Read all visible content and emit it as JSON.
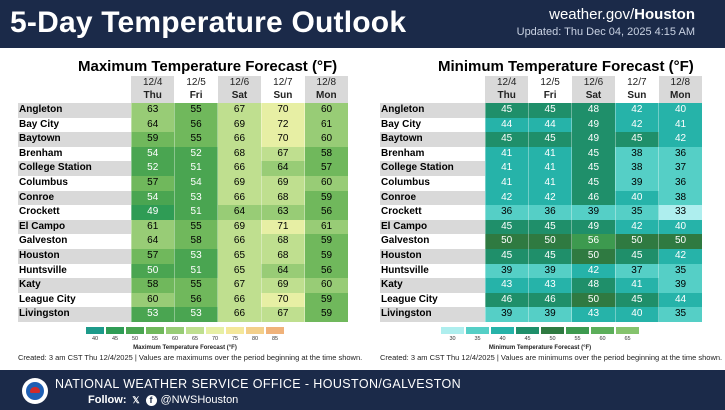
{
  "header": {
    "title": "5-Day Temperature Outlook",
    "site_prefix": "weather.gov/",
    "site_office": "Houston",
    "updated": "Updated: Thu Dec 04, 2025 4:15 AM"
  },
  "cities": [
    "Angleton",
    "Bay City",
    "Baytown",
    "Brenham",
    "College Station",
    "Columbus",
    "Conroe",
    "Crockett",
    "El Campo",
    "Galveston",
    "Houston",
    "Huntsville",
    "Katy",
    "League City",
    "Livingston"
  ],
  "dates": [
    "12/4",
    "12/5",
    "12/6",
    "12/7",
    "12/8"
  ],
  "days": [
    "Thu",
    "Fri",
    "Sat",
    "Sun",
    "Mon"
  ],
  "max_panel": {
    "title": "Maximum Temperature Forecast (°F)",
    "values": [
      [
        63,
        55,
        67,
        70,
        60
      ],
      [
        64,
        56,
        69,
        72,
        61
      ],
      [
        59,
        55,
        66,
        70,
        60
      ],
      [
        54,
        52,
        68,
        67,
        58
      ],
      [
        52,
        51,
        66,
        64,
        57
      ],
      [
        57,
        54,
        69,
        69,
        60
      ],
      [
        54,
        53,
        66,
        68,
        59
      ],
      [
        49,
        51,
        64,
        63,
        56
      ],
      [
        61,
        55,
        69,
        71,
        61
      ],
      [
        64,
        58,
        66,
        68,
        59
      ],
      [
        57,
        53,
        65,
        68,
        59
      ],
      [
        50,
        51,
        65,
        64,
        56
      ],
      [
        58,
        55,
        67,
        69,
        60
      ],
      [
        60,
        56,
        66,
        70,
        59
      ],
      [
        53,
        53,
        66,
        67,
        59
      ]
    ],
    "legend_ticks": [
      "40",
      "45",
      "50",
      "55",
      "60",
      "65",
      "70",
      "75",
      "80",
      "85"
    ],
    "legend_caption": "Maximum Temperature Forecast (°F)",
    "footnote": "Created: 3 am CST Thu 12/4/2025  |  Values are maximums over the period beginning at the time shown."
  },
  "min_panel": {
    "title": "Minimum Temperature Forecast (°F)",
    "values": [
      [
        45,
        45,
        48,
        42,
        40
      ],
      [
        44,
        44,
        49,
        42,
        41
      ],
      [
        45,
        45,
        49,
        45,
        42
      ],
      [
        41,
        41,
        45,
        38,
        36
      ],
      [
        41,
        41,
        45,
        38,
        37
      ],
      [
        41,
        41,
        45,
        39,
        36
      ],
      [
        42,
        42,
        46,
        40,
        38
      ],
      [
        36,
        36,
        39,
        35,
        33
      ],
      [
        45,
        45,
        49,
        42,
        40
      ],
      [
        50,
        50,
        56,
        50,
        50
      ],
      [
        45,
        45,
        50,
        45,
        42
      ],
      [
        39,
        39,
        42,
        37,
        35
      ],
      [
        43,
        43,
        48,
        41,
        39
      ],
      [
        46,
        46,
        50,
        45,
        44
      ],
      [
        39,
        39,
        43,
        40,
        35
      ]
    ],
    "legend_ticks": [
      "30",
      "35",
      "40",
      "45",
      "50",
      "55",
      "60",
      "65"
    ],
    "legend_caption": "Minimum Temperature Forecast (°F)",
    "footnote": "Created: 3 am CST Thu 12/4/2025  |  Values are minimums over the period beginning at the time shown."
  },
  "footer": {
    "office": "NATIONAL WEATHER SERVICE OFFICE - HOUSTON/GALVESTON",
    "follow_label": "Follow:",
    "x_glyph": "𝕏",
    "fb_glyph": "f",
    "handle": "@NWSHouston"
  },
  "colors": {
    "header_bg": "#1b2a49",
    "max_scale": [
      "#1d9a8a",
      "#2f9c55",
      "#4aa551",
      "#70b85c",
      "#98cc76",
      "#bfdf8f",
      "#e7efa4",
      "#f4e79a",
      "#f3cf8a",
      "#f0b27a"
    ],
    "min_scale": [
      "#aeeeee",
      "#55cfc6",
      "#26b3a9",
      "#1f8f6a",
      "#2f7a41",
      "#3d9a4f",
      "#5cae5a",
      "#85c36d"
    ]
  }
}
